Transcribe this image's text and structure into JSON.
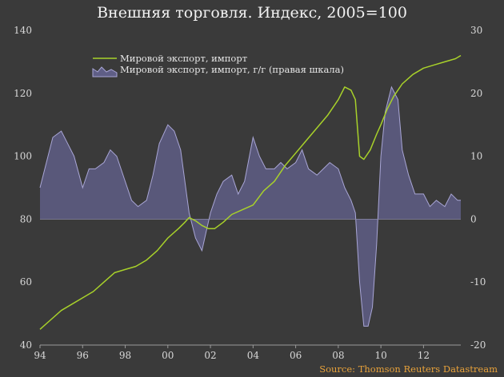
{
  "chart_data": {
    "type": "line",
    "title": "Внешняя торговля. Индекс, 2005=100",
    "source": "Source: Thomson Reuters Datastream",
    "colors": {
      "background": "#3a3a3a",
      "line": "#a8d12a",
      "area_fill": "#5f5e86",
      "area_stroke": "#a9a6d6"
    },
    "x_ticks": [
      "94",
      "96",
      "98",
      "00",
      "02",
      "04",
      "06",
      "08",
      "10",
      "12"
    ],
    "x_tick_years": [
      1994,
      1996,
      1998,
      2000,
      2002,
      2004,
      2006,
      2008,
      2010,
      2012
    ],
    "xlim": [
      1994,
      2013.75
    ],
    "left_axis": {
      "ylim": [
        40,
        140
      ],
      "ticks": [
        "40",
        "60",
        "80",
        "100",
        "120",
        "140"
      ]
    },
    "right_axis": {
      "ylim": [
        -20,
        30
      ],
      "ticks": [
        "-20",
        "-10",
        "0",
        "10",
        "20",
        "30"
      ]
    },
    "legend": {
      "placement": "top-left"
    },
    "series": [
      {
        "name": "Мировой экспорт, импорт",
        "axis": "left",
        "style": "line",
        "x": [
          1994.0,
          1994.5,
          1995.0,
          1995.5,
          1996.0,
          1996.5,
          1997.0,
          1997.5,
          1998.0,
          1998.5,
          1999.0,
          1999.5,
          2000.0,
          2000.5,
          2000.8,
          2001.0,
          2001.3,
          2001.6,
          2001.9,
          2002.2,
          2002.6,
          2003.0,
          2003.5,
          2004.0,
          2004.5,
          2005.0,
          2005.5,
          2006.0,
          2006.5,
          2007.0,
          2007.5,
          2008.0,
          2008.3,
          2008.6,
          2008.8,
          2009.0,
          2009.2,
          2009.5,
          2009.8,
          2010.0,
          2010.3,
          2010.6,
          2011.0,
          2011.5,
          2012.0,
          2012.5,
          2013.0,
          2013.5,
          2013.75
        ],
        "y": [
          45,
          48,
          51,
          53,
          55,
          57,
          60,
          63,
          64,
          65,
          67,
          70,
          74,
          77,
          79,
          80.5,
          79.5,
          78,
          77,
          77,
          79,
          81.5,
          83,
          84.5,
          89,
          92,
          97,
          101,
          105,
          109,
          113,
          118,
          122,
          121,
          118,
          100,
          99,
          102,
          107,
          110,
          115,
          119,
          123,
          126,
          128,
          129,
          130,
          131,
          132
        ]
      },
      {
        "name": "Мировой экспорт, импорт, г/г (правая шкала)",
        "axis": "right",
        "style": "area",
        "x": [
          1994.0,
          1994.3,
          1994.6,
          1995.0,
          1995.3,
          1995.6,
          1996.0,
          1996.3,
          1996.6,
          1997.0,
          1997.3,
          1997.6,
          1998.0,
          1998.3,
          1998.6,
          1999.0,
          1999.3,
          1999.6,
          2000.0,
          2000.3,
          2000.6,
          2001.0,
          2001.3,
          2001.6,
          2001.8,
          2002.0,
          2002.3,
          2002.6,
          2003.0,
          2003.3,
          2003.6,
          2004.0,
          2004.3,
          2004.6,
          2005.0,
          2005.3,
          2005.6,
          2006.0,
          2006.3,
          2006.6,
          2007.0,
          2007.3,
          2007.6,
          2008.0,
          2008.3,
          2008.6,
          2008.8,
          2009.0,
          2009.2,
          2009.4,
          2009.6,
          2009.8,
          2010.0,
          2010.2,
          2010.5,
          2010.8,
          2011.0,
          2011.3,
          2011.6,
          2012.0,
          2012.3,
          2012.6,
          2013.0,
          2013.3,
          2013.6,
          2013.75
        ],
        "y": [
          5,
          9,
          13,
          14,
          12,
          10,
          5,
          8,
          8,
          9,
          11,
          10,
          6,
          3,
          2,
          3,
          7,
          12,
          15,
          14,
          11,
          1,
          -3,
          -5,
          -2,
          1,
          4,
          6,
          7,
          4,
          6,
          13,
          10,
          8,
          8,
          9,
          8,
          9,
          11,
          8,
          7,
          8,
          9,
          8,
          5,
          3,
          1,
          -10,
          -17,
          -17,
          -14,
          -4,
          10,
          17,
          21,
          19,
          11,
          7,
          4,
          4,
          2,
          3,
          2,
          4,
          3,
          3
        ]
      }
    ]
  }
}
